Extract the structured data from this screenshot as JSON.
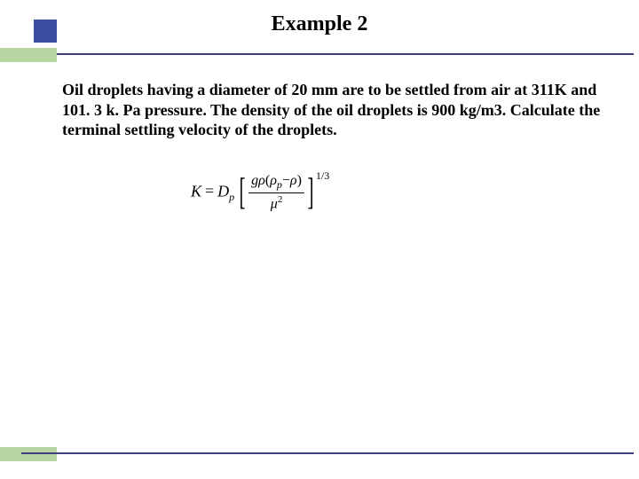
{
  "title": "Example 2",
  "problem": "Oil droplets having a diameter of 20 mm are to be settled from air at 311K and 101. 3 k. Pa pressure.   The density of the oil droplets is 900 kg/m3.  Calculate the terminal settling velocity of the droplets.",
  "formula": {
    "lhs_var": "K",
    "equals": "=",
    "coef_var": "D",
    "coef_sub": "p",
    "num_left": "g",
    "num_rho": "ρ",
    "num_open": "(",
    "num_rhop": "ρ",
    "num_rhop_sub": "p",
    "num_minus": "−",
    "num_rho2": "ρ",
    "num_close": ")",
    "den_mu": "μ",
    "den_sq": "2",
    "exponent": "1/3"
  },
  "colors": {
    "accent_blue": "#3d4da0",
    "accent_green": "#b7d6a2",
    "rule": "#404080",
    "text": "#000000",
    "background": "#ffffff"
  }
}
